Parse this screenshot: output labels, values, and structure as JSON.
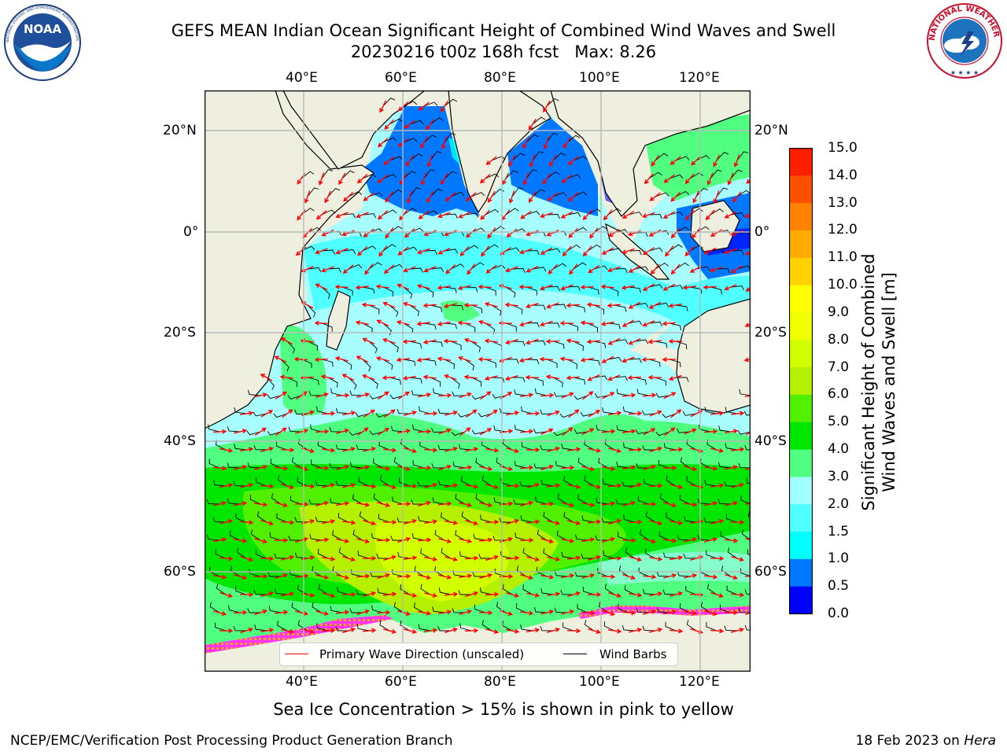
{
  "title": {
    "line1": "GEFS MEAN Indian Ocean Significant Height of Combined Wind Waves and Swell",
    "line2": "20230216 t00z 168h fcst   Max: 8.26"
  },
  "logos": {
    "left": "NOAA",
    "left_ring_text": "NATIONAL OCEANIC AND ATMOSPHERIC ADMINISTRATION · U.S. DEPARTMENT OF COMMERCE",
    "right_ring_text": "NATIONAL WEATHER SERVICE"
  },
  "map": {
    "lon_labels": [
      "40°E",
      "60°E",
      "80°E",
      "100°E",
      "120°E"
    ],
    "lat_labels": [
      "20°N",
      "0°",
      "20°S",
      "40°S",
      "60°S"
    ],
    "colors": {
      "land": "#efefe0",
      "ocean_default": "#a8fefe",
      "grid": "#b8b8b8",
      "wave_arrow": "#ff0000",
      "wind_barb": "#000000",
      "sea_ice": "#ff33ff"
    }
  },
  "legend": {
    "wave_label": "Primary Wave Direction (unscaled)",
    "wind_label": "Wind Barbs",
    "wave_color": "#ff0000",
    "wind_color": "#000000"
  },
  "colorbar": {
    "label_line1": "Significant Height of Combined",
    "label_line2": "Wind Waves and Swell [m]",
    "ticks": [
      "0.0",
      "0.5",
      "1.0",
      "1.5",
      "2.0",
      "3.0",
      "4.0",
      "5.0",
      "6.0",
      "7.0",
      "8.0",
      "9.0",
      "10.0",
      "11.0",
      "12.0",
      "13.0",
      "14.0",
      "15.0"
    ],
    "colors": [
      "#0000ff",
      "#0078ff",
      "#00ffff",
      "#50ffff",
      "#a0ffff",
      "#50ff80",
      "#00e600",
      "#50f000",
      "#b4f000",
      "#d2ff00",
      "#f0ff00",
      "#ffff00",
      "#ffd200",
      "#ffaa00",
      "#ff8200",
      "#ff5000",
      "#ff1e00"
    ]
  },
  "subtitle": "Sea Ice Concentration > 15% is shown in pink to yellow",
  "footer": {
    "left": "NCEP/EMC/Verification Post Processing Product Generation Branch",
    "right_date": "18 Feb 2023 on ",
    "right_host": "Hera"
  }
}
